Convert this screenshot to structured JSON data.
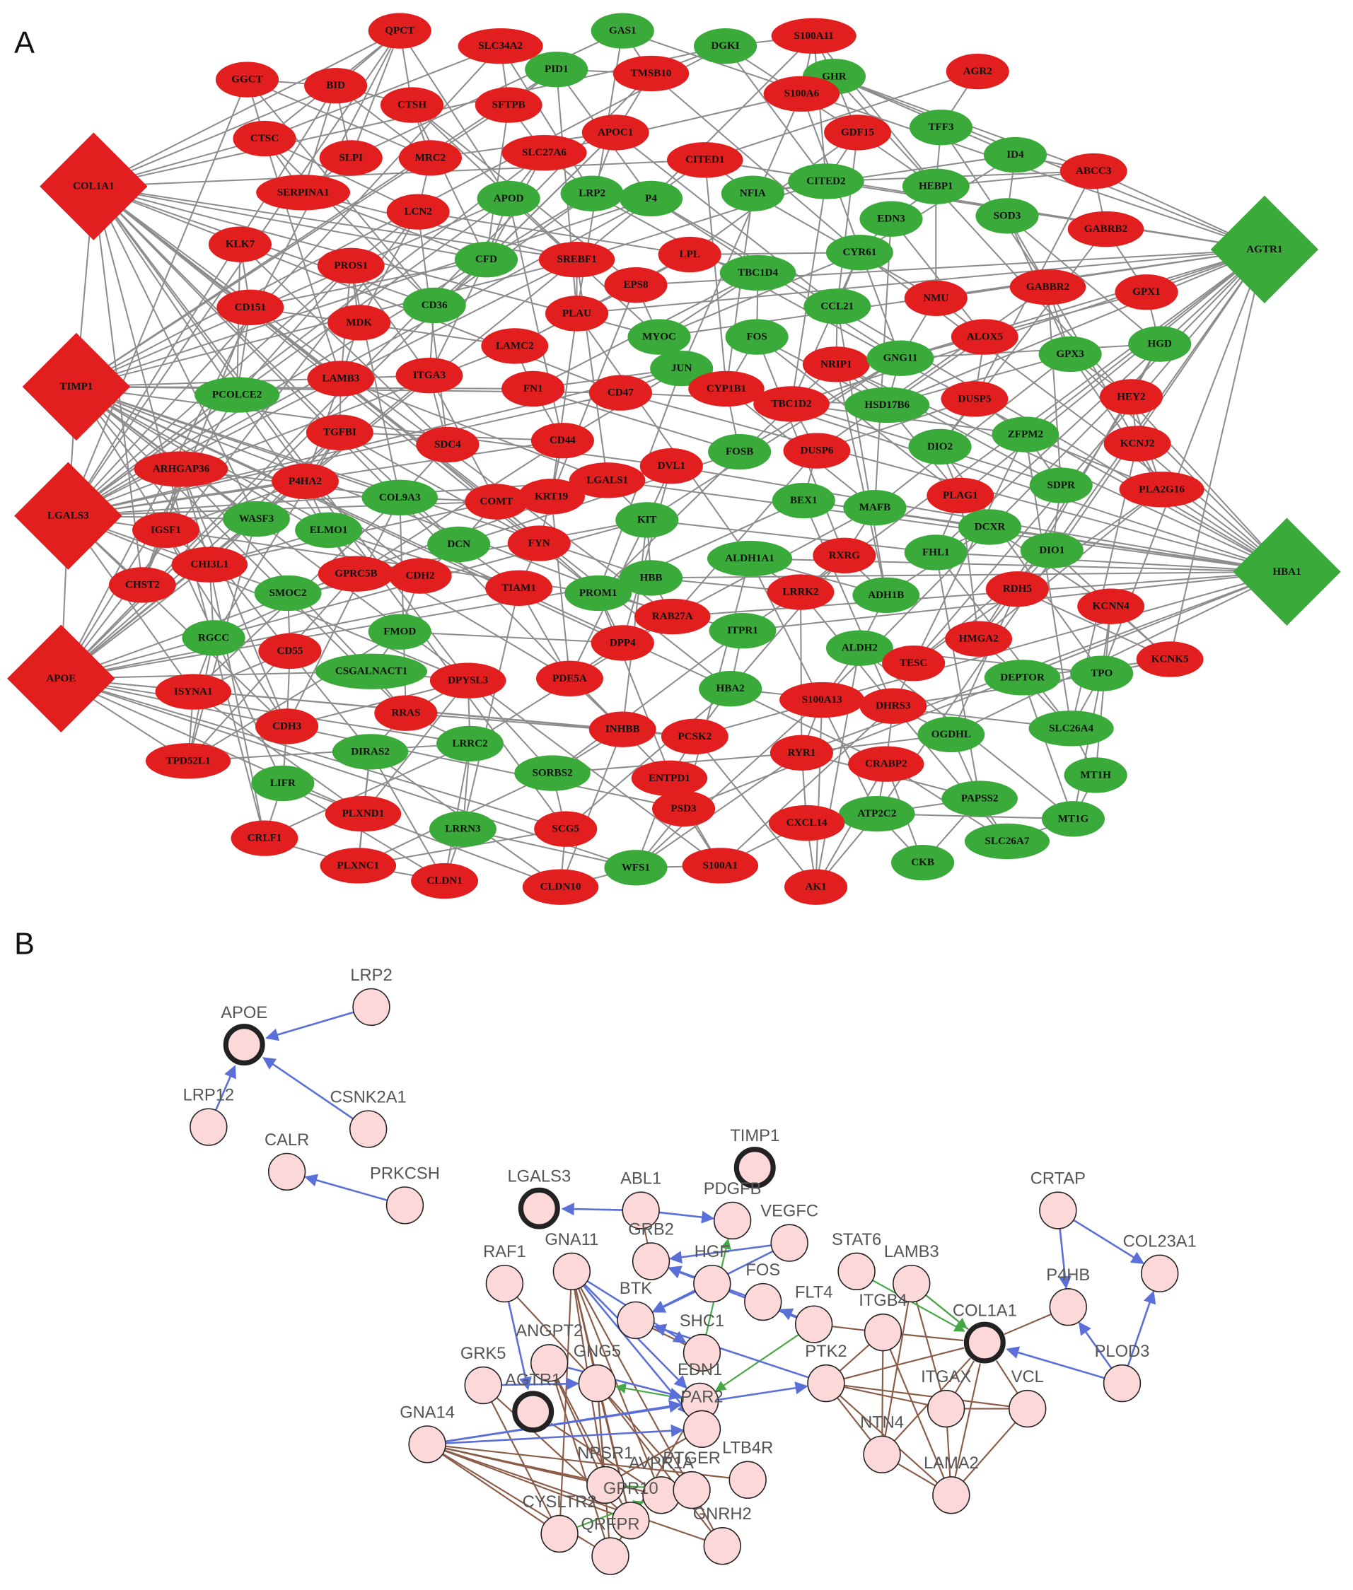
{
  "panel_a": {
    "label": "A",
    "nodes": [
      {
        "label": "QPCT",
        "color": "#e31e1e"
      },
      {
        "label": "SLC34A2",
        "color": "#e31e1e"
      },
      {
        "label": "GAS1",
        "color": "#3aaa3a"
      },
      {
        "label": "DGKI",
        "color": "#3aaa3a"
      },
      {
        "label": "S100A11",
        "color": "#e31e1e"
      },
      {
        "label": "GGCT",
        "color": "#e31e1e"
      },
      {
        "label": "BID",
        "color": "#e31e1e"
      },
      {
        "label": "PID1",
        "color": "#3aaa3a"
      },
      {
        "label": "TMSB10",
        "color": "#e31e1e"
      },
      {
        "label": "GHR",
        "color": "#3aaa3a"
      },
      {
        "label": "AGR2",
        "color": "#e31e1e"
      },
      {
        "label": "CTSH",
        "color": "#e31e1e"
      },
      {
        "label": "SFTPB",
        "color": "#e31e1e"
      },
      {
        "label": "S100A6",
        "color": "#e31e1e"
      },
      {
        "label": "CTSC",
        "color": "#e31e1e"
      },
      {
        "label": "APOC1",
        "color": "#e31e1e"
      },
      {
        "label": "TFF3",
        "color": "#3aaa3a"
      },
      {
        "label": "GDF15",
        "color": "#e31e1e"
      },
      {
        "label": "SLPI",
        "color": "#e31e1e"
      },
      {
        "label": "MRC2",
        "color": "#e31e1e"
      },
      {
        "label": "SLC27A6",
        "color": "#e31e1e"
      },
      {
        "label": "CITED1",
        "color": "#e31e1e"
      },
      {
        "label": "ID4",
        "color": "#3aaa3a"
      },
      {
        "label": "ABCC3",
        "color": "#e31e1e"
      },
      {
        "label": "COL1A1",
        "color": "#e31e1e"
      },
      {
        "label": "SERPINA1",
        "color": "#e31e1e"
      },
      {
        "label": "APOD",
        "color": "#3aaa3a"
      },
      {
        "label": "LRP2",
        "color": "#3aaa3a"
      },
      {
        "label": "P4",
        "color": "#3aaa3a"
      },
      {
        "label": "NFIA",
        "color": "#3aaa3a"
      },
      {
        "label": "CITED2",
        "color": "#3aaa3a"
      },
      {
        "label": "HEBP1",
        "color": "#3aaa3a"
      },
      {
        "label": "LCN2",
        "color": "#e31e1e"
      },
      {
        "label": "EDN3",
        "color": "#3aaa3a"
      },
      {
        "label": "SOD3",
        "color": "#3aaa3a"
      },
      {
        "label": "GABRB2",
        "color": "#e31e1e"
      },
      {
        "label": "KLK7",
        "color": "#e31e1e"
      },
      {
        "label": "AGTR1",
        "color": "#3aaa3a"
      },
      {
        "label": "CFD",
        "color": "#3aaa3a"
      },
      {
        "label": "SREBF1",
        "color": "#e31e1e"
      },
      {
        "label": "LPL",
        "color": "#e31e1e"
      },
      {
        "label": "TBC1D4",
        "color": "#3aaa3a"
      },
      {
        "label": "CYR61",
        "color": "#3aaa3a"
      },
      {
        "label": "PROS1",
        "color": "#e31e1e"
      },
      {
        "label": "EPS8",
        "color": "#e31e1e"
      },
      {
        "label": "CD151",
        "color": "#e31e1e"
      },
      {
        "label": "CD36",
        "color": "#3aaa3a"
      },
      {
        "label": "CCL21",
        "color": "#3aaa3a"
      },
      {
        "label": "NMU",
        "color": "#e31e1e"
      },
      {
        "label": "GABBR2",
        "color": "#e31e1e"
      },
      {
        "label": "GPX1",
        "color": "#e31e1e"
      },
      {
        "label": "PLAU",
        "color": "#e31e1e"
      },
      {
        "label": "MDK",
        "color": "#e31e1e"
      },
      {
        "label": "MYOC",
        "color": "#3aaa3a"
      },
      {
        "label": "FOS",
        "color": "#3aaa3a"
      },
      {
        "label": "ALOX5",
        "color": "#e31e1e"
      },
      {
        "label": "HGD",
        "color": "#3aaa3a"
      },
      {
        "label": "LAMC2",
        "color": "#e31e1e"
      },
      {
        "label": "JUN",
        "color": "#3aaa3a"
      },
      {
        "label": "NRIP1",
        "color": "#e31e1e"
      },
      {
        "label": "GNG11",
        "color": "#3aaa3a"
      },
      {
        "label": "GPX3",
        "color": "#3aaa3a"
      },
      {
        "label": "TIMP1",
        "color": "#e31e1e"
      },
      {
        "label": "LAMB3",
        "color": "#e31e1e"
      },
      {
        "label": "ITGA3",
        "color": "#e31e1e"
      },
      {
        "label": "PCOLCE2",
        "color": "#3aaa3a"
      },
      {
        "label": "FN1",
        "color": "#e31e1e"
      },
      {
        "label": "CD47",
        "color": "#e31e1e"
      },
      {
        "label": "CYP1B1",
        "color": "#e31e1e"
      },
      {
        "label": "TBC1D2",
        "color": "#e31e1e"
      },
      {
        "label": "HSD17B6",
        "color": "#3aaa3a"
      },
      {
        "label": "DUSP5",
        "color": "#e31e1e"
      },
      {
        "label": "HEY2",
        "color": "#e31e1e"
      },
      {
        "label": "TGFBI",
        "color": "#e31e1e"
      },
      {
        "label": "SDC4",
        "color": "#e31e1e"
      },
      {
        "label": "CD44",
        "color": "#e31e1e"
      },
      {
        "label": "FOSB",
        "color": "#3aaa3a"
      },
      {
        "label": "DUSP6",
        "color": "#e31e1e"
      },
      {
        "label": "DIO2",
        "color": "#3aaa3a"
      },
      {
        "label": "ZFPM2",
        "color": "#3aaa3a"
      },
      {
        "label": "KCNJ2",
        "color": "#e31e1e"
      },
      {
        "label": "ARHGAP36",
        "color": "#e31e1e"
      },
      {
        "label": "P4HA2",
        "color": "#e31e1e"
      },
      {
        "label": "LGALS1",
        "color": "#e31e1e"
      },
      {
        "label": "DVL1",
        "color": "#e31e1e"
      },
      {
        "label": "LGALS3",
        "color": "#e31e1e"
      },
      {
        "label": "COL9A3",
        "color": "#3aaa3a"
      },
      {
        "label": "COMT",
        "color": "#e31e1e"
      },
      {
        "label": "KRT19",
        "color": "#e31e1e"
      },
      {
        "label": "BEX1",
        "color": "#3aaa3a"
      },
      {
        "label": "MAFB",
        "color": "#3aaa3a"
      },
      {
        "label": "PLAG1",
        "color": "#e31e1e"
      },
      {
        "label": "SDPR",
        "color": "#3aaa3a"
      },
      {
        "label": "PLA2G16",
        "color": "#e31e1e"
      },
      {
        "label": "IGSF1",
        "color": "#e31e1e"
      },
      {
        "label": "WASF3",
        "color": "#3aaa3a"
      },
      {
        "label": "ELMO1",
        "color": "#3aaa3a"
      },
      {
        "label": "KIT",
        "color": "#3aaa3a"
      },
      {
        "label": "DCXR",
        "color": "#3aaa3a"
      },
      {
        "label": "DCN",
        "color": "#3aaa3a"
      },
      {
        "label": "FYN",
        "color": "#e31e1e"
      },
      {
        "label": "DIO1",
        "color": "#3aaa3a"
      },
      {
        "label": "ALDH1A1",
        "color": "#3aaa3a"
      },
      {
        "label": "RXRG",
        "color": "#e31e1e"
      },
      {
        "label": "FHL1",
        "color": "#3aaa3a"
      },
      {
        "label": "HBA1",
        "color": "#3aaa3a"
      },
      {
        "label": "CHI3L1",
        "color": "#e31e1e"
      },
      {
        "label": "CHST2",
        "color": "#e31e1e"
      },
      {
        "label": "GPRC5B",
        "color": "#e31e1e"
      },
      {
        "label": "CDH2",
        "color": "#e31e1e"
      },
      {
        "label": "HBB",
        "color": "#3aaa3a"
      },
      {
        "label": "TIAM1",
        "color": "#e31e1e"
      },
      {
        "label": "SMOC2",
        "color": "#3aaa3a"
      },
      {
        "label": "PROM1",
        "color": "#3aaa3a"
      },
      {
        "label": "LRRK2",
        "color": "#e31e1e"
      },
      {
        "label": "ADH1B",
        "color": "#3aaa3a"
      },
      {
        "label": "RDH5",
        "color": "#e31e1e"
      },
      {
        "label": "KCNN4",
        "color": "#e31e1e"
      },
      {
        "label": "RAB27A",
        "color": "#e31e1e"
      },
      {
        "label": "RGCC",
        "color": "#3aaa3a"
      },
      {
        "label": "FMOD",
        "color": "#3aaa3a"
      },
      {
        "label": "ITPR1",
        "color": "#3aaa3a"
      },
      {
        "label": "ALDH2",
        "color": "#3aaa3a"
      },
      {
        "label": "HMGA2",
        "color": "#e31e1e"
      },
      {
        "label": "KCNK5",
        "color": "#e31e1e"
      },
      {
        "label": "APOE",
        "color": "#e31e1e"
      },
      {
        "label": "CD55",
        "color": "#e31e1e"
      },
      {
        "label": "DPP4",
        "color": "#e31e1e"
      },
      {
        "label": "TESC",
        "color": "#e31e1e"
      },
      {
        "label": "CSGALNACT1",
        "color": "#3aaa3a"
      },
      {
        "label": "DEPTOR",
        "color": "#3aaa3a"
      },
      {
        "label": "TPO",
        "color": "#3aaa3a"
      },
      {
        "label": "ISYNA1",
        "color": "#e31e1e"
      },
      {
        "label": "DPYSL3",
        "color": "#e31e1e"
      },
      {
        "label": "PDE5A",
        "color": "#e31e1e"
      },
      {
        "label": "HBA2",
        "color": "#3aaa3a"
      },
      {
        "label": "S100A13",
        "color": "#e31e1e"
      },
      {
        "label": "DHRS3",
        "color": "#e31e1e"
      },
      {
        "label": "RRAS",
        "color": "#e31e1e"
      },
      {
        "label": "OGDHL",
        "color": "#3aaa3a"
      },
      {
        "label": "SLC26A4",
        "color": "#3aaa3a"
      },
      {
        "label": "CDH3",
        "color": "#e31e1e"
      },
      {
        "label": "INHBB",
        "color": "#e31e1e"
      },
      {
        "label": "PCSK2",
        "color": "#e31e1e"
      },
      {
        "label": "RYR1",
        "color": "#e31e1e"
      },
      {
        "label": "CRABP2",
        "color": "#e31e1e"
      },
      {
        "label": "LRRC2",
        "color": "#3aaa3a"
      },
      {
        "label": "DIRAS2",
        "color": "#3aaa3a"
      },
      {
        "label": "TPD52L1",
        "color": "#e31e1e"
      },
      {
        "label": "SORBS2",
        "color": "#3aaa3a"
      },
      {
        "label": "ENTPD1",
        "color": "#e31e1e"
      },
      {
        "label": "MT1H",
        "color": "#3aaa3a"
      },
      {
        "label": "LIFR",
        "color": "#3aaa3a"
      },
      {
        "label": "PAPSS2",
        "color": "#3aaa3a"
      },
      {
        "label": "PSD3",
        "color": "#e31e1e"
      },
      {
        "label": "PLXND1",
        "color": "#e31e1e"
      },
      {
        "label": "ATP2C2",
        "color": "#3aaa3a"
      },
      {
        "label": "CXCL14",
        "color": "#e31e1e"
      },
      {
        "label": "MT1G",
        "color": "#3aaa3a"
      },
      {
        "label": "SCG5",
        "color": "#e31e1e"
      },
      {
        "label": "LRRN3",
        "color": "#3aaa3a"
      },
      {
        "label": "SLC26A7",
        "color": "#3aaa3a"
      },
      {
        "label": "CRLF1",
        "color": "#e31e1e"
      },
      {
        "label": "WFS1",
        "color": "#3aaa3a"
      },
      {
        "label": "S100A1",
        "color": "#e31e1e"
      },
      {
        "label": "CKB",
        "color": "#3aaa3a"
      },
      {
        "label": "PLXNC1",
        "color": "#e31e1e"
      },
      {
        "label": "CLDN1",
        "color": "#e31e1e"
      },
      {
        "label": "CLDN10",
        "color": "#e31e1e"
      },
      {
        "label": "AK1",
        "color": "#e31e1e"
      }
    ]
  },
  "panel_b": {
    "label": "B",
    "nodes": [
      "APOE",
      "LRP2",
      "LRP12",
      "CSNK2A1",
      "CALR",
      "PRKCSH",
      "LGALS3",
      "TIMP1",
      "ABL1",
      "PDGFB",
      "VEGFC",
      "CRTAP",
      "RAF1",
      "GNA11",
      "GRB2",
      "HGF",
      "STAT6",
      "LAMB3",
      "COL23A1",
      "BTK",
      "FOS",
      "P4HB",
      "FLT4",
      "ITGB4",
      "COL1A1",
      "ANGPT2",
      "SHC1",
      "PLOD3",
      "PTK2",
      "GRK5",
      "GNG5",
      "ITGAX",
      "VCL",
      "AGTR1",
      "EDN1",
      "PAR2",
      "GNA14",
      "NTN4",
      "LTB4R",
      "NPSR1",
      "AVPR1A",
      "PTGER",
      "LAMA2",
      "CYSLTR2",
      "GPR10",
      "QRFPR",
      "GNRH2"
    ]
  }
}
